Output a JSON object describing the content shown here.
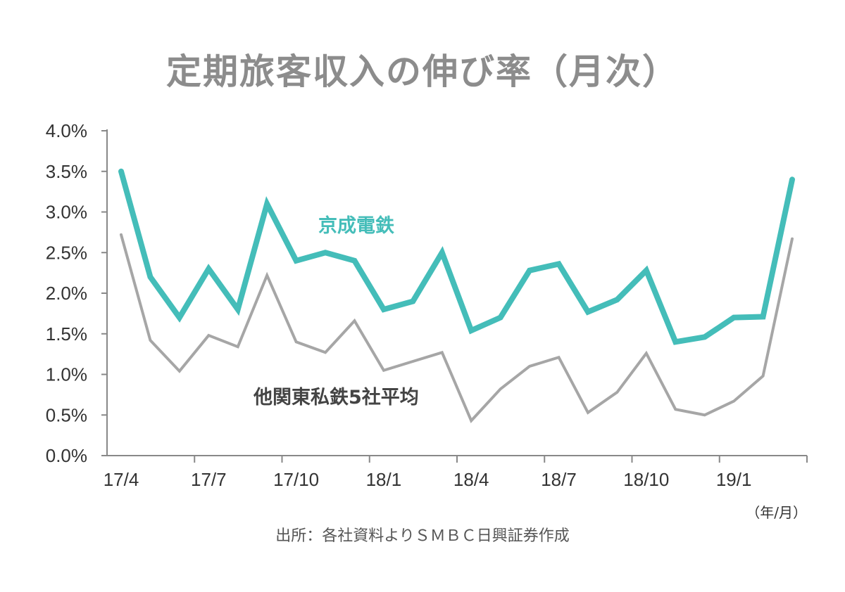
{
  "chart_data": {
    "type": "line",
    "title": "定期旅客収入の伸び率（月次）",
    "xlabel": "（年/月）",
    "ylabel": "",
    "source": "出所：各社資料よりＳＭＢＣ日興証券作成",
    "ylim": [
      0,
      4.0
    ],
    "yticks": [
      "0.0%",
      "0.5%",
      "1.0%",
      "1.5%",
      "2.0%",
      "2.5%",
      "3.0%",
      "3.5%",
      "4.0%"
    ],
    "x": [
      "17/4",
      "17/5",
      "17/6",
      "17/7",
      "17/8",
      "17/9",
      "17/10",
      "17/11",
      "17/12",
      "18/1",
      "18/2",
      "18/3",
      "18/4",
      "18/5",
      "18/6",
      "18/7",
      "18/8",
      "18/9",
      "18/10",
      "18/11",
      "18/12",
      "19/1",
      "19/2",
      "19/3"
    ],
    "xtick_labels": [
      {
        "label": "17/4",
        "index": 0
      },
      {
        "label": "17/7",
        "index": 3
      },
      {
        "label": "17/10",
        "index": 6
      },
      {
        "label": "18/1",
        "index": 9
      },
      {
        "label": "18/4",
        "index": 12
      },
      {
        "label": "18/7",
        "index": 15
      },
      {
        "label": "18/10",
        "index": 18
      },
      {
        "label": "19/1",
        "index": 21
      }
    ],
    "grid": false,
    "series": [
      {
        "name": "京成電鉄",
        "color": "#44bdb9",
        "values": [
          3.5,
          2.2,
          1.7,
          2.3,
          1.8,
          3.1,
          2.4,
          2.5,
          2.4,
          1.8,
          1.9,
          2.5,
          1.54,
          1.7,
          2.28,
          2.36,
          1.77,
          1.92,
          2.28,
          1.4,
          1.46,
          1.7,
          1.71,
          3.4
        ]
      },
      {
        "name": "他関東私鉄5社平均",
        "color": "#a6a6a6",
        "values": [
          2.72,
          1.42,
          1.04,
          1.48,
          1.34,
          2.22,
          1.4,
          1.27,
          1.66,
          1.05,
          1.16,
          1.27,
          0.43,
          0.82,
          1.1,
          1.21,
          0.53,
          0.78,
          1.26,
          0.57,
          0.5,
          0.67,
          0.98,
          2.67
        ]
      }
    ]
  }
}
